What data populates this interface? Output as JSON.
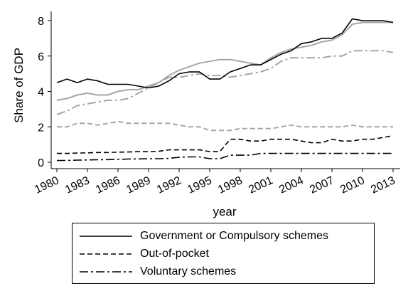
{
  "chart_data": {
    "type": "line",
    "title": "",
    "xlabel": "year",
    "ylabel": "Share of GDP",
    "xlim": [
      1980,
      2013
    ],
    "ylim": [
      0,
      8
    ],
    "x_ticks": [
      "1980",
      "1983",
      "1986",
      "1989",
      "1992",
      "1995",
      "1998",
      "2001",
      "2004",
      "2007",
      "2010",
      "2013"
    ],
    "y_ticks": [
      "0",
      "2",
      "4",
      "6",
      "8"
    ],
    "grid": false,
    "legend_placement": "bottom",
    "x": [
      1980,
      1981,
      1982,
      1983,
      1984,
      1985,
      1986,
      1987,
      1988,
      1989,
      1990,
      1991,
      1992,
      1993,
      1994,
      1995,
      1996,
      1997,
      1998,
      1999,
      2000,
      2001,
      2002,
      2003,
      2004,
      2005,
      2006,
      2007,
      2008,
      2009,
      2010,
      2011,
      2012,
      2013
    ],
    "series": [
      {
        "name": "Government or Compulsory schemes",
        "style": "solid",
        "color": "#000000",
        "values": [
          4.5,
          4.7,
          4.5,
          4.7,
          4.6,
          4.4,
          4.4,
          4.4,
          4.3,
          4.2,
          4.3,
          4.6,
          5.0,
          5.1,
          5.1,
          4.7,
          4.7,
          5.1,
          5.3,
          5.5,
          5.5,
          5.8,
          6.1,
          6.3,
          6.7,
          6.8,
          7.0,
          7.0,
          7.3,
          8.1,
          8.0,
          8.0,
          8.0,
          7.9
        ]
      },
      {
        "name": "Out-of-pocket",
        "style": "dashed",
        "color": "#000000",
        "values": [
          0.5,
          0.5,
          0.52,
          0.53,
          0.55,
          0.55,
          0.57,
          0.58,
          0.6,
          0.6,
          0.62,
          0.7,
          0.7,
          0.7,
          0.7,
          0.6,
          0.6,
          1.3,
          1.3,
          1.2,
          1.2,
          1.3,
          1.3,
          1.3,
          1.2,
          1.1,
          1.1,
          1.3,
          1.2,
          1.2,
          1.3,
          1.3,
          1.4,
          1.5
        ]
      },
      {
        "name": "Voluntary schemes",
        "style": "dashdot",
        "color": "#000000",
        "values": [
          0.1,
          0.1,
          0.12,
          0.13,
          0.14,
          0.15,
          0.16,
          0.18,
          0.19,
          0.2,
          0.2,
          0.22,
          0.28,
          0.3,
          0.3,
          0.2,
          0.2,
          0.4,
          0.4,
          0.4,
          0.5,
          0.5,
          0.5,
          0.5,
          0.5,
          0.5,
          0.5,
          0.5,
          0.5,
          0.5,
          0.5,
          0.5,
          0.5,
          0.5
        ]
      },
      {
        "style": "solid",
        "color": "#a6a6a6",
        "values": [
          3.5,
          3.6,
          3.8,
          3.9,
          3.8,
          3.8,
          4.0,
          4.1,
          4.1,
          4.3,
          4.5,
          4.9,
          5.2,
          5.4,
          5.6,
          5.7,
          5.8,
          5.8,
          5.7,
          5.6,
          5.5,
          5.9,
          6.2,
          6.4,
          6.5,
          6.6,
          6.8,
          6.9,
          7.2,
          7.8,
          7.9,
          7.9,
          7.9,
          7.9
        ]
      },
      {
        "style": "dashed",
        "color": "#a6a6a6",
        "values": [
          2.0,
          2.0,
          2.2,
          2.2,
          2.1,
          2.2,
          2.3,
          2.2,
          2.2,
          2.2,
          2.2,
          2.2,
          2.1,
          2.0,
          2.0,
          1.8,
          1.8,
          1.8,
          1.9,
          1.9,
          1.9,
          1.9,
          2.0,
          2.1,
          2.0,
          2.0,
          2.0,
          2.0,
          2.0,
          2.1,
          2.0,
          2.0,
          2.0,
          2.0
        ]
      },
      {
        "style": "dashdot",
        "color": "#a6a6a6",
        "values": [
          2.7,
          2.9,
          3.2,
          3.3,
          3.4,
          3.5,
          3.5,
          3.6,
          3.9,
          4.2,
          4.5,
          4.8,
          4.8,
          4.9,
          5.0,
          4.9,
          4.9,
          4.8,
          4.9,
          5.0,
          5.1,
          5.3,
          5.7,
          5.9,
          5.9,
          5.9,
          5.9,
          6.0,
          6.0,
          6.3,
          6.3,
          6.3,
          6.3,
          6.2
        ]
      }
    ]
  }
}
